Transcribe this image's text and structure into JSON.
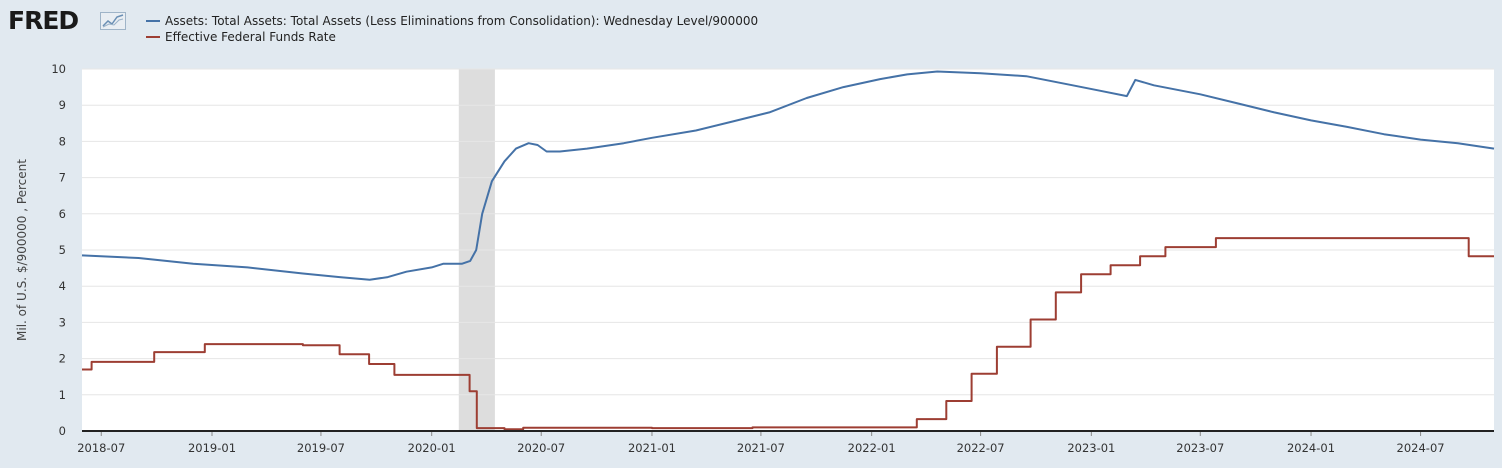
{
  "logo": {
    "text": "FRED"
  },
  "chart_data": {
    "type": "line",
    "title": "",
    "ylabel": "Mil. of U.S. $/900000 , Percent",
    "ylim": [
      0,
      10
    ],
    "xlim": [
      "2018-05-30",
      "2024-10-31"
    ],
    "yticks": [
      "0",
      "1",
      "2",
      "3",
      "4",
      "5",
      "6",
      "7",
      "8",
      "9",
      "10"
    ],
    "xticks": [
      "2018-07",
      "2019-01",
      "2019-07",
      "2020-01",
      "2020-07",
      "2021-01",
      "2021-07",
      "2022-01",
      "2022-07",
      "2023-01",
      "2023-07",
      "2024-01",
      "2024-07"
    ],
    "grid": true,
    "legend_position": "top-left",
    "recession_shading": [
      [
        "2020-02-15",
        "2020-04-15"
      ]
    ],
    "series": [
      {
        "name": "Assets: Total Assets: Total Assets (Less Eliminations from Consolidation): Wednesday Level/900000",
        "color": "#4572a7",
        "step": false,
        "points": [
          [
            "2018-05-30",
            4.85
          ],
          [
            "2018-09-01",
            4.78
          ],
          [
            "2018-12-01",
            4.62
          ],
          [
            "2019-03-01",
            4.52
          ],
          [
            "2019-06-01",
            4.35
          ],
          [
            "2019-08-01",
            4.25
          ],
          [
            "2019-09-20",
            4.18
          ],
          [
            "2019-10-20",
            4.25
          ],
          [
            "2019-11-20",
            4.4
          ],
          [
            "2020-01-01",
            4.52
          ],
          [
            "2020-01-20",
            4.62
          ],
          [
            "2020-02-20",
            4.62
          ],
          [
            "2020-03-05",
            4.7
          ],
          [
            "2020-03-15",
            5.0
          ],
          [
            "2020-03-25",
            6.0
          ],
          [
            "2020-04-10",
            6.9
          ],
          [
            "2020-05-01",
            7.45
          ],
          [
            "2020-05-20",
            7.8
          ],
          [
            "2020-06-10",
            7.95
          ],
          [
            "2020-06-25",
            7.9
          ],
          [
            "2020-07-10",
            7.72
          ],
          [
            "2020-08-01",
            7.72
          ],
          [
            "2020-09-15",
            7.8
          ],
          [
            "2020-11-15",
            7.95
          ],
          [
            "2021-01-01",
            8.1
          ],
          [
            "2021-03-15",
            8.3
          ],
          [
            "2021-05-15",
            8.55
          ],
          [
            "2021-07-15",
            8.8
          ],
          [
            "2021-09-15",
            9.2
          ],
          [
            "2021-11-15",
            9.5
          ],
          [
            "2022-01-15",
            9.72
          ],
          [
            "2022-03-01",
            9.85
          ],
          [
            "2022-04-20",
            9.93
          ],
          [
            "2022-07-01",
            9.88
          ],
          [
            "2022-09-15",
            9.8
          ],
          [
            "2022-12-01",
            9.55
          ],
          [
            "2023-01-15",
            9.4
          ],
          [
            "2023-03-01",
            9.25
          ],
          [
            "2023-03-15",
            9.7
          ],
          [
            "2023-04-15",
            9.55
          ],
          [
            "2023-07-01",
            9.3
          ],
          [
            "2023-09-01",
            9.05
          ],
          [
            "2023-11-01",
            8.8
          ],
          [
            "2024-01-01",
            8.58
          ],
          [
            "2024-03-01",
            8.4
          ],
          [
            "2024-05-01",
            8.2
          ],
          [
            "2024-07-01",
            8.05
          ],
          [
            "2024-09-01",
            7.95
          ],
          [
            "2024-10-31",
            7.8
          ]
        ]
      },
      {
        "name": "Effective Federal Funds Rate",
        "color": "#9d3e33",
        "step": true,
        "points": [
          [
            "2018-05-30",
            1.7
          ],
          [
            "2018-06-15",
            1.91
          ],
          [
            "2018-09-27",
            2.18
          ],
          [
            "2018-12-20",
            2.4
          ],
          [
            "2019-06-01",
            2.37
          ],
          [
            "2019-08-01",
            2.12
          ],
          [
            "2019-09-19",
            1.85
          ],
          [
            "2019-10-31",
            1.55
          ],
          [
            "2020-03-04",
            1.1
          ],
          [
            "2020-03-16",
            0.08
          ],
          [
            "2020-05-01",
            0.05
          ],
          [
            "2020-06-01",
            0.09
          ],
          [
            "2021-01-01",
            0.08
          ],
          [
            "2021-06-17",
            0.1
          ],
          [
            "2022-03-17",
            0.33
          ],
          [
            "2022-05-05",
            0.83
          ],
          [
            "2022-06-16",
            1.58
          ],
          [
            "2022-07-28",
            2.33
          ],
          [
            "2022-09-22",
            3.08
          ],
          [
            "2022-11-03",
            3.83
          ],
          [
            "2022-12-15",
            4.33
          ],
          [
            "2023-02-02",
            4.58
          ],
          [
            "2023-03-23",
            4.83
          ],
          [
            "2023-05-04",
            5.08
          ],
          [
            "2023-07-27",
            5.33
          ],
          [
            "2024-09-19",
            4.83
          ],
          [
            "2024-10-31",
            4.83
          ]
        ]
      }
    ]
  }
}
